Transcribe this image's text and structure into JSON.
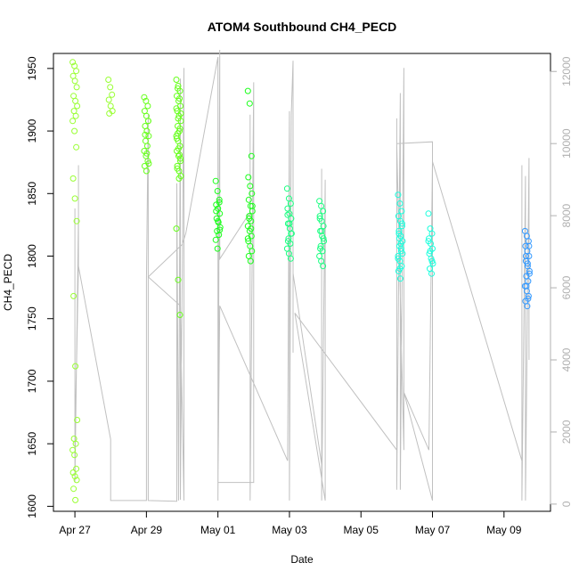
{
  "chart_data": {
    "type": "scatter",
    "title": "ATOM4 Southbound CH4_PECD",
    "xlabel": "Date",
    "ylabel": "CH4_PECD",
    "x_ticks": [
      "Apr 27",
      "Apr 29",
      "May 01",
      "May 03",
      "May 05",
      "May 07",
      "May 09"
    ],
    "x_tick_days": [
      0,
      2,
      4,
      6,
      8,
      10,
      12
    ],
    "xlim_days_from_apr27": [
      -0.6,
      13.3
    ],
    "y_ticks": [
      1600,
      1650,
      1700,
      1750,
      1800,
      1850,
      1900,
      1950
    ],
    "ylim": [
      1596,
      1962
    ],
    "y2_ticks": [
      0,
      2000,
      4000,
      6000,
      8000,
      10000,
      12000
    ],
    "y2lim": [
      -200,
      12500
    ],
    "marker": "open-circle",
    "secondary_line_color": "#c0c0c0",
    "series": [
      {
        "color": "#99ff33",
        "clusters": [
          {
            "day": 0.0,
            "values": [
              1955,
              1952,
              1948,
              1944,
              1940,
              1935,
              1928,
              1924,
              1920,
              1916,
              1912,
              1908,
              1900,
              1887,
              1862,
              1846,
              1828,
              1768,
              1712,
              1669,
              1654,
              1650,
              1645,
              1641,
              1630,
              1627,
              1624,
              1621,
              1614,
              1605
            ]
          },
          {
            "day": 1.0,
            "values": [
              1941,
              1935,
              1929,
              1925,
              1920,
              1916,
              1914
            ]
          }
        ]
      },
      {
        "color": "#66ff1a",
        "clusters": [
          {
            "day": 2.0,
            "values": [
              1927,
              1924,
              1920,
              1916,
              1912,
              1908,
              1904,
              1900,
              1896,
              1892,
              1888,
              1884,
              1880,
              1876,
              1872,
              1868,
              1908,
              1897,
              1882,
              1874
            ]
          },
          {
            "day": 2.9,
            "values": [
              1941,
              1936,
              1932,
              1928,
              1924,
              1920,
              1916,
              1912,
              1908,
              1904,
              1900,
              1896,
              1892,
              1888,
              1884,
              1880,
              1876,
              1872,
              1868,
              1864,
              1934,
              1926,
              1918,
              1910,
              1902,
              1894,
              1886,
              1878,
              1870,
              1862,
              1914,
              1898,
              1881,
              1822,
              1781,
              1753
            ]
          }
        ]
      },
      {
        "color": "#1aff1a",
        "clusters": [
          {
            "day": 4.0,
            "values": [
              1860,
              1852,
              1845,
              1841,
              1838,
              1834,
              1830,
              1827,
              1823,
              1820,
              1817,
              1813,
              1806,
              1843,
              1836,
              1828,
              1821
            ]
          },
          {
            "day": 4.9,
            "values": [
              1932,
              1922,
              1880,
              1863,
              1856,
              1850,
              1845,
              1840,
              1836,
              1832,
              1828,
              1824,
              1820,
              1816,
              1812,
              1808,
              1804,
              1800,
              1796,
              1840,
              1830,
              1822,
              1814
            ]
          }
        ]
      },
      {
        "color": "#1aff80",
        "clusters": [
          {
            "day": 6.0,
            "values": [
              1854,
              1846,
              1842,
              1838,
              1834,
              1830,
              1826,
              1822,
              1818,
              1814,
              1810,
              1806,
              1802,
              1798,
              1833,
              1826,
              1818,
              1812
            ]
          },
          {
            "day": 6.9,
            "values": [
              1844,
              1840,
              1836,
              1832,
              1828,
              1824,
              1820,
              1816,
              1812,
              1808,
              1804,
              1800,
              1796,
              1792,
              1830,
              1820,
              1814,
              1806
            ]
          }
        ]
      },
      {
        "color": "#1affdd",
        "clusters": [
          {
            "day": 9.1,
            "values": [
              1849,
              1842,
              1836,
              1832,
              1828,
              1824,
              1820,
              1816,
              1812,
              1808,
              1804,
              1800,
              1796,
              1792,
              1788,
              1782,
              1826,
              1818,
              1810,
              1802,
              1814,
              1806,
              1798,
              1790
            ]
          },
          {
            "day": 9.95,
            "values": [
              1834,
              1822,
              1818,
              1814,
              1810,
              1806,
              1802,
              1798,
              1794,
              1790,
              1786,
              1812,
              1804,
              1796
            ]
          }
        ]
      },
      {
        "color": "#3399ff",
        "clusters": [
          {
            "day": 12.65,
            "values": [
              1820,
              1816,
              1812,
              1808,
              1804,
              1800,
              1796,
              1792,
              1788,
              1784,
              1780,
              1776,
              1772,
              1768,
              1764,
              1760,
              1808,
              1800,
              1794,
              1786,
              1776,
              1766
            ]
          }
        ]
      }
    ],
    "secondary_line": [
      [
        0.0,
        8200
      ],
      [
        0.0,
        600
      ],
      [
        0.1,
        8000
      ],
      [
        0.1,
        9400
      ],
      [
        0.1,
        6600
      ],
      [
        0.0,
        1600
      ],
      [
        0.0,
        7000
      ],
      [
        0.0,
        1800
      ],
      [
        0.1,
        6600
      ],
      [
        1.0,
        1800
      ],
      [
        1.0,
        100
      ],
      [
        2.0,
        100
      ],
      [
        2.0,
        6200
      ],
      [
        2.05,
        10800
      ],
      [
        2.05,
        100
      ],
      [
        2.85,
        80
      ],
      [
        2.85,
        8900
      ],
      [
        2.9,
        100
      ],
      [
        2.95,
        11800
      ],
      [
        2.95,
        120
      ],
      [
        3.05,
        12100
      ],
      [
        3.05,
        100
      ],
      [
        2.95,
        5500
      ],
      [
        2.05,
        6300
      ],
      [
        3.0,
        7200
      ],
      [
        3.1,
        7500
      ],
      [
        4.0,
        12400
      ],
      [
        4.0,
        100
      ],
      [
        4.05,
        12600
      ],
      [
        4.05,
        6800
      ],
      [
        4.9,
        8100
      ],
      [
        4.9,
        10800
      ],
      [
        4.9,
        100
      ],
      [
        5.0,
        11700
      ],
      [
        5.0,
        600
      ],
      [
        4.0,
        600
      ],
      [
        4.05,
        5500
      ],
      [
        5.95,
        1200
      ],
      [
        6.0,
        10900
      ],
      [
        6.0,
        100
      ],
      [
        6.05,
        10800
      ],
      [
        6.1,
        12300
      ],
      [
        6.1,
        4200
      ],
      [
        6.1,
        6400
      ],
      [
        6.9,
        1100
      ],
      [
        6.9,
        9300
      ],
      [
        6.9,
        100
      ],
      [
        7.0,
        9000
      ],
      [
        7.0,
        100
      ],
      [
        6.15,
        5300
      ],
      [
        9.0,
        1500
      ],
      [
        9.0,
        10700
      ],
      [
        9.0,
        400
      ],
      [
        9.1,
        11400
      ],
      [
        9.1,
        400
      ],
      [
        9.2,
        12100
      ],
      [
        9.2,
        1500
      ],
      [
        9.0,
        10000
      ],
      [
        10.0,
        10050
      ],
      [
        10.0,
        9000
      ],
      [
        10.0,
        100
      ],
      [
        9.2,
        3100
      ],
      [
        9.9,
        1500
      ],
      [
        10.0,
        9500
      ],
      [
        12.5,
        1200
      ],
      [
        12.5,
        9400
      ],
      [
        12.5,
        100
      ],
      [
        12.6,
        9100
      ],
      [
        12.6,
        100
      ],
      [
        12.7,
        9600
      ],
      [
        12.7,
        4000
      ]
    ]
  }
}
